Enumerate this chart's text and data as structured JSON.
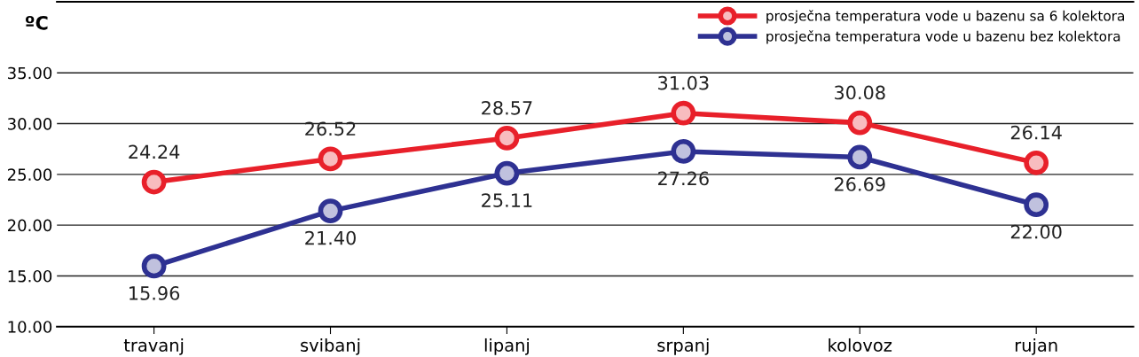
{
  "chart_data": {
    "type": "line",
    "ylabel": "ºC",
    "categories": [
      "travanj",
      "svibanj",
      "lipanj",
      "srpanj",
      "kolovoz",
      "rujan"
    ],
    "series": [
      {
        "name": "prosječna temperatura vode u bazenu sa 6 kolektora",
        "color": "#e8202a",
        "values": [
          24.24,
          26.52,
          28.57,
          31.03,
          30.08,
          26.14
        ],
        "value_labels": [
          "24.24",
          "26.52",
          "28.57",
          "31.03",
          "30.08",
          "26.14"
        ]
      },
      {
        "name": "prosječna temperatura vode u bazenu bez kolektora",
        "color": "#2e3192",
        "values": [
          15.96,
          21.4,
          25.11,
          27.26,
          26.69,
          22.0
        ],
        "value_labels": [
          "15.96",
          "21.40",
          "25.11",
          "27.26",
          "26.69",
          "22.00"
        ]
      }
    ],
    "ylim": [
      10,
      42
    ],
    "yticks": [
      {
        "value": 10,
        "label": "10.00"
      },
      {
        "value": 15,
        "label": "15.00"
      },
      {
        "value": 20,
        "label": "20.00"
      },
      {
        "value": 25,
        "label": "25.00"
      },
      {
        "value": 30,
        "label": "30.00"
      },
      {
        "value": 35,
        "label": "35.00"
      }
    ],
    "grid": "y",
    "legend": "top right",
    "marker": "circle",
    "line_style": "solid"
  }
}
